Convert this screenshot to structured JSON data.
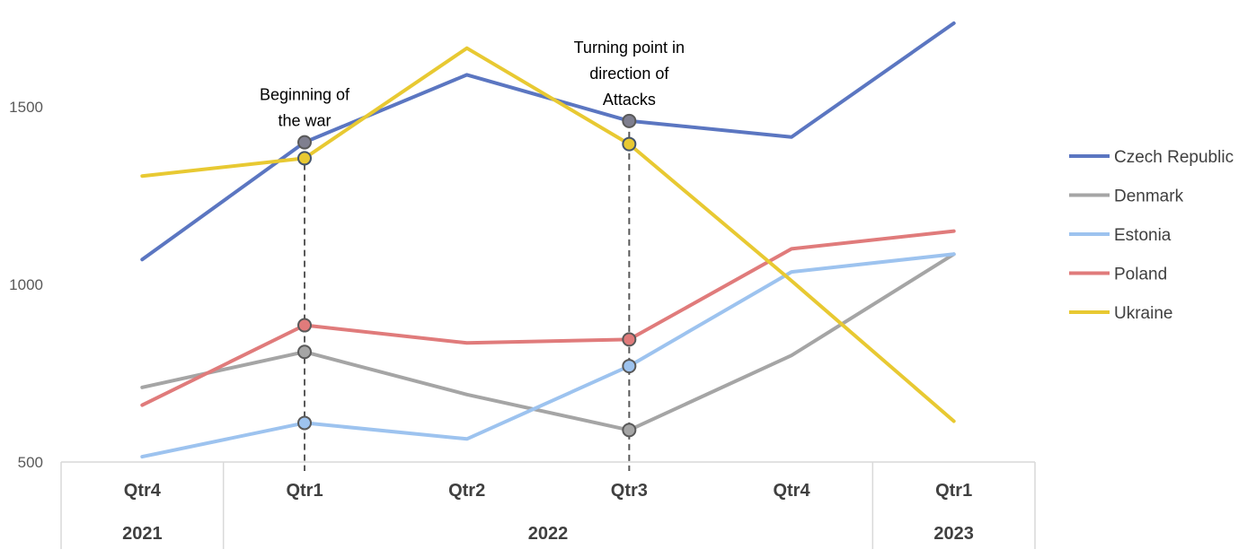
{
  "chart_data": {
    "type": "line",
    "categories": [
      "Qtr4",
      "Qtr1",
      "Qtr2",
      "Qtr3",
      "Qtr4",
      "Qtr1"
    ],
    "years": [
      {
        "label": "2021",
        "span": 1
      },
      {
        "label": "2022",
        "span": 4
      },
      {
        "label": "2023",
        "span": 1
      }
    ],
    "yticks": [
      500,
      1000,
      1500
    ],
    "ylim": [
      500,
      1750
    ],
    "series": [
      {
        "name": "Czech Republic",
        "color": "#5b76c1",
        "values": [
          1070,
          1400,
          1590,
          1460,
          1415,
          1735
        ]
      },
      {
        "name": "Denmark",
        "color": "#a5a5a5",
        "values": [
          710,
          810,
          690,
          590,
          800,
          1085
        ]
      },
      {
        "name": "Estonia",
        "color": "#9dc3ef",
        "values": [
          515,
          610,
          565,
          770,
          1035,
          1085
        ]
      },
      {
        "name": "Poland",
        "color": "#e07b7b",
        "values": [
          660,
          885,
          835,
          845,
          1100,
          1150
        ]
      },
      {
        "name": "Ukraine",
        "color": "#e8c932",
        "values": [
          1305,
          1355,
          1665,
          1395,
          1010,
          615
        ]
      }
    ],
    "markers": [
      1,
      3
    ],
    "annotations": [
      {
        "index": 1,
        "lines": [
          "Beginning of",
          "the war"
        ]
      },
      {
        "index": 3,
        "lines": [
          "Turning point in",
          "direction of",
          "Attacks"
        ]
      }
    ],
    "legend_position": "right",
    "grid": false
  }
}
